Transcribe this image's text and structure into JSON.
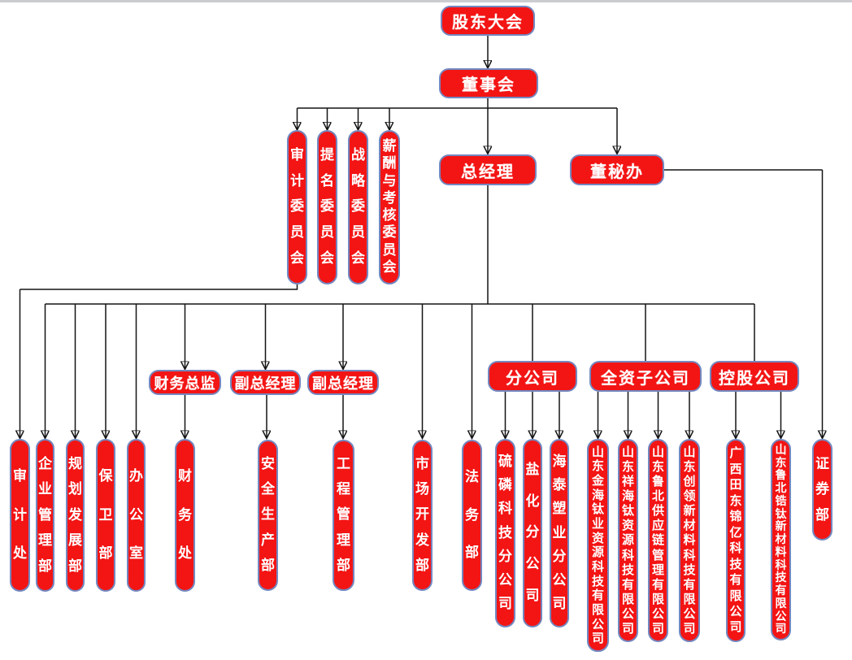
{
  "colors": {
    "node_fill": "#f31414",
    "node_border": "#7388c0",
    "node_text": "#ffffff",
    "line": "#141414",
    "top_strip": "#cbccd0"
  },
  "chart_type": "organizational-chart",
  "nodes": {
    "shareholders": {
      "label": "股东大会"
    },
    "board": {
      "label": "董事会"
    },
    "audit_committee": {
      "label": "审计委员会"
    },
    "nomination_committee": {
      "label": "提名委员会"
    },
    "strategy_committee": {
      "label": "战略委员会"
    },
    "remuneration_committee": {
      "label": "薪酬与考核委员会"
    },
    "general_manager": {
      "label": "总经理"
    },
    "board_secretary_office": {
      "label": "董秘办"
    },
    "cfo": {
      "label": "财务总监"
    },
    "deputy_gm_1": {
      "label": "副总经理"
    },
    "deputy_gm_2": {
      "label": "副总经理"
    },
    "branch_companies": {
      "label": "分公司"
    },
    "wholly_owned_subsidiaries": {
      "label": "全资子公司"
    },
    "holding_companies": {
      "label": "控股公司"
    },
    "audit_office": {
      "label": "审计处"
    },
    "enterprise_management_dept": {
      "label": "企业管理部"
    },
    "planning_development_dept": {
      "label": "规划发展部"
    },
    "security_dept": {
      "label": "保卫部"
    },
    "general_office": {
      "label": "办公室"
    },
    "finance_office": {
      "label": "财务处"
    },
    "safety_production_dept": {
      "label": "安全生产部"
    },
    "engineering_management_dept": {
      "label": "工程管理部"
    },
    "market_development_dept": {
      "label": "市场开发部"
    },
    "legal_dept": {
      "label": "法务部"
    },
    "sulfur_phosphorus_branch": {
      "label": "硫磷科技分公司"
    },
    "salt_chemical_branch": {
      "label": "盐化分公司"
    },
    "haitai_plastics_branch": {
      "label": "海泰塑业分公司"
    },
    "jinhai_titanium_co": {
      "label": "山东金海钛业资源科技有限公司"
    },
    "xianghai_titanium_co": {
      "label": "山东祥海钛资源科技有限公司"
    },
    "lubei_supply_chain_co": {
      "label": "山东鲁北供应链管理有限公司"
    },
    "chuangling_new_materials_co": {
      "label": "山东创领新材料科技有限公司"
    },
    "tiandong_jinyi_co": {
      "label": "广西田东锦亿科技有限公司"
    },
    "lubei_zirconium_titanium_co": {
      "label": "山东鲁北锆钛新材料科技有限公司"
    },
    "securities_dept": {
      "label": "证券部"
    }
  }
}
